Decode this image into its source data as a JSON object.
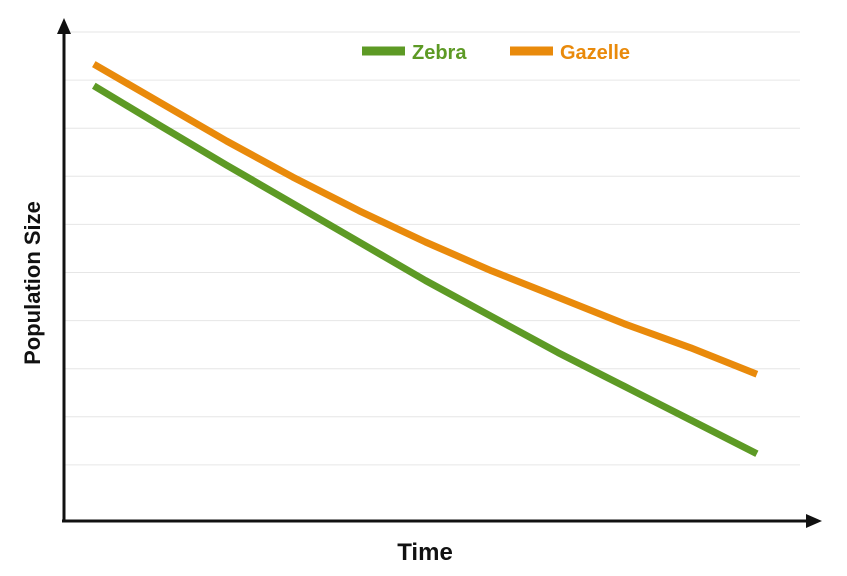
{
  "chart_data": {
    "type": "line",
    "title": "",
    "xlabel": "Time",
    "ylabel": "Population Size",
    "x": [
      0,
      1,
      2,
      3,
      4,
      5,
      6,
      7,
      8,
      9,
      10
    ],
    "xlim": [
      -0.45,
      10.65
    ],
    "ylim": [
      0,
      10
    ],
    "grid": true,
    "legend": "top-center",
    "series": [
      {
        "name": "Zebra",
        "color": "#5d9a25",
        "values": [
          9.05,
          8.22,
          7.4,
          6.6,
          5.8,
          5.0,
          4.25,
          3.5,
          2.8,
          2.1,
          1.4
        ]
      },
      {
        "name": "Gazelle",
        "color": "#e98a0b",
        "values": [
          9.5,
          8.7,
          7.9,
          7.15,
          6.45,
          5.8,
          5.2,
          4.65,
          4.1,
          3.6,
          3.05
        ]
      }
    ]
  }
}
